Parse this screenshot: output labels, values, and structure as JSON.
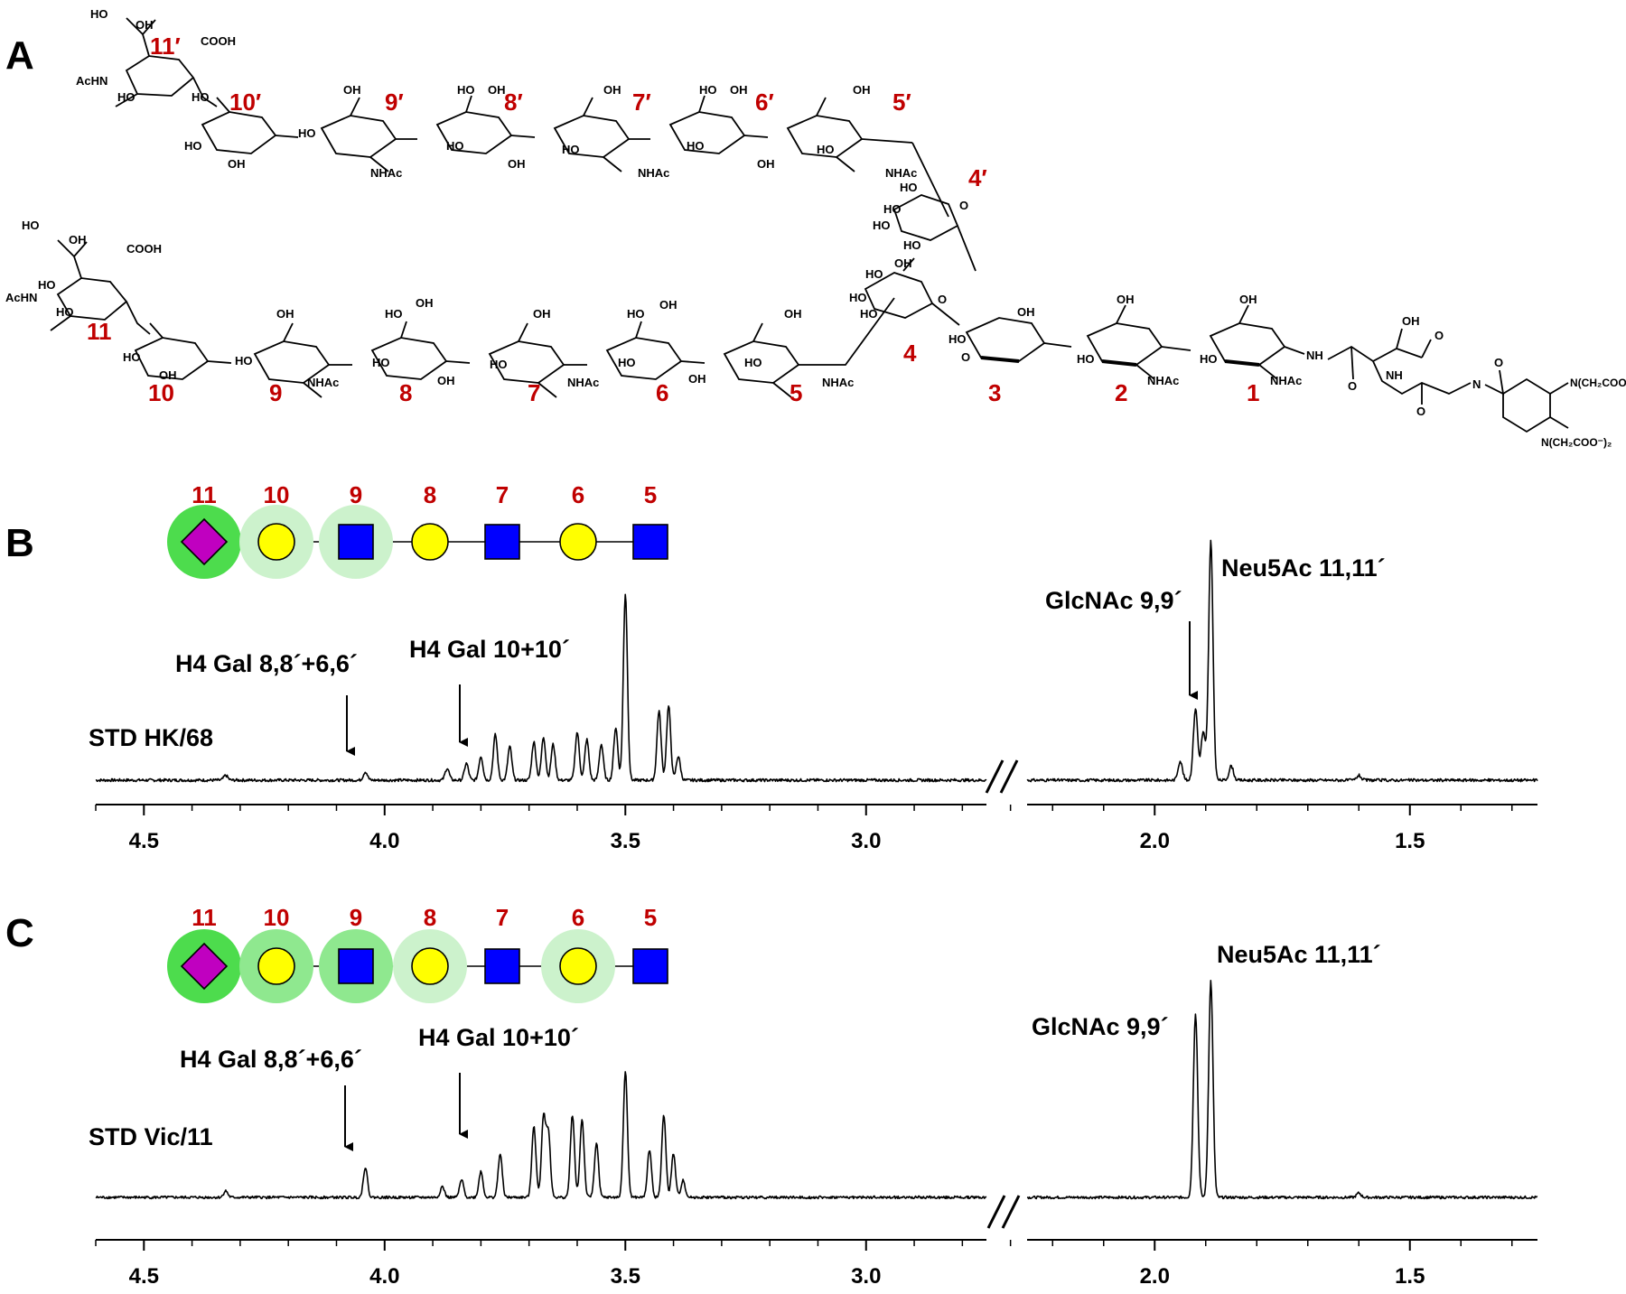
{
  "panel_labels": {
    "a": "A",
    "b": "B",
    "c": "C"
  },
  "structure": {
    "residue_labels": {
      "r1": "1",
      "r2": "2",
      "r3": "3",
      "r4": "4",
      "r5": "5",
      "r6": "6",
      "r7": "7",
      "r8": "8",
      "r9": "9",
      "r10": "10",
      "r11": "11",
      "r4p": "4′",
      "r5p": "5′",
      "r6p": "6′",
      "r7p": "7′",
      "r8p": "8′",
      "r9p": "9′",
      "r10p": "10′",
      "r11p": "11′"
    },
    "group_labels": {
      "oh": "OH",
      "ho": "HO",
      "cooh": "COOH",
      "acnh": "AcHN",
      "nhac": "NHAc",
      "nh": "NH",
      "n": "N",
      "o": "O",
      "chelator_top": "N(CH₂COO⁻)₂",
      "chelator_bottom": "N(CH₂COO⁻)₂"
    }
  },
  "symbols": {
    "labels": [
      "11",
      "10",
      "9",
      "8",
      "7",
      "6",
      "5"
    ],
    "types": [
      "sialic-acid-diamond",
      "galactose-circle",
      "glcnac-square",
      "galactose-circle",
      "glcnac-square",
      "galactose-circle",
      "glcnac-square"
    ],
    "colors": {
      "diamond": "#c000c0",
      "circle": "#ffff00",
      "square": "#0000ff",
      "halo_strong": "#4ddc4d",
      "halo_medium": "#8fe88f",
      "halo_light": "#ccf2cc"
    },
    "halos_B": [
      "strong",
      "light",
      "light",
      "none",
      "none",
      "none",
      "none"
    ],
    "halos_C": [
      "strong",
      "medium",
      "medium",
      "light",
      "none",
      "light",
      "none"
    ]
  },
  "chart_data": [
    {
      "panel": "B",
      "type": "line",
      "spectrum_label": "STD HK/68",
      "annotations": {
        "gal8_6": "H4 Gal 8,8´+6,6´",
        "gal10": "H4 Gal 10+10´",
        "glcnac": "GlcNAc 9,9´",
        "neu5ac": "Neu5Ac 11,11´"
      },
      "x_unit": "ppm",
      "x_reversed": true,
      "xlim_left": [
        4.6,
        2.75
      ],
      "xlim_right": [
        2.25,
        1.25
      ],
      "ticks": [
        "4.5",
        "4.0",
        "3.5",
        "3.0",
        "2.0",
        "1.5"
      ],
      "tick_values": [
        4.5,
        4.0,
        3.5,
        3.0,
        2.0,
        1.5
      ],
      "peaks": [
        {
          "x": 4.33,
          "y": 0.02
        },
        {
          "x": 4.04,
          "y": 0.035
        },
        {
          "x": 3.87,
          "y": 0.05
        },
        {
          "x": 3.83,
          "y": 0.07
        },
        {
          "x": 3.8,
          "y": 0.1
        },
        {
          "x": 3.77,
          "y": 0.19
        },
        {
          "x": 3.74,
          "y": 0.14
        },
        {
          "x": 3.69,
          "y": 0.16
        },
        {
          "x": 3.67,
          "y": 0.18
        },
        {
          "x": 3.65,
          "y": 0.15
        },
        {
          "x": 3.6,
          "y": 0.2
        },
        {
          "x": 3.58,
          "y": 0.17
        },
        {
          "x": 3.55,
          "y": 0.15
        },
        {
          "x": 3.52,
          "y": 0.22
        },
        {
          "x": 3.5,
          "y": 0.78
        },
        {
          "x": 3.43,
          "y": 0.29
        },
        {
          "x": 3.41,
          "y": 0.31
        },
        {
          "x": 3.39,
          "y": 0.1
        },
        {
          "x": 1.95,
          "y": 0.08
        },
        {
          "x": 1.92,
          "y": 0.3
        },
        {
          "x": 1.905,
          "y": 0.2
        },
        {
          "x": 1.89,
          "y": 1.0
        },
        {
          "x": 1.85,
          "y": 0.06
        },
        {
          "x": 1.6,
          "y": 0.02
        }
      ]
    },
    {
      "panel": "C",
      "type": "line",
      "spectrum_label": "STD Vic/11",
      "annotations": {
        "gal8_6": "H4 Gal 8,8´+6,6´",
        "gal10": "H4 Gal 10+10´",
        "glcnac": "GlcNAc 9,9´",
        "neu5ac": "Neu5Ac 11,11´"
      },
      "x_unit": "ppm",
      "x_reversed": true,
      "xlim_left": [
        4.6,
        2.75
      ],
      "xlim_right": [
        2.25,
        1.25
      ],
      "ticks": [
        "4.5",
        "4.0",
        "3.5",
        "3.0",
        "2.0",
        "1.5"
      ],
      "tick_values": [
        4.5,
        4.0,
        3.5,
        3.0,
        2.0,
        1.5
      ],
      "peaks": [
        {
          "x": 4.33,
          "y": 0.03
        },
        {
          "x": 4.04,
          "y": 0.14
        },
        {
          "x": 3.88,
          "y": 0.05
        },
        {
          "x": 3.84,
          "y": 0.08
        },
        {
          "x": 3.8,
          "y": 0.12
        },
        {
          "x": 3.76,
          "y": 0.2
        },
        {
          "x": 3.69,
          "y": 0.33
        },
        {
          "x": 3.67,
          "y": 0.37
        },
        {
          "x": 3.66,
          "y": 0.3
        },
        {
          "x": 3.61,
          "y": 0.38
        },
        {
          "x": 3.59,
          "y": 0.36
        },
        {
          "x": 3.56,
          "y": 0.25
        },
        {
          "x": 3.5,
          "y": 0.58
        },
        {
          "x": 3.45,
          "y": 0.22
        },
        {
          "x": 3.42,
          "y": 0.38
        },
        {
          "x": 3.4,
          "y": 0.2
        },
        {
          "x": 3.38,
          "y": 0.08
        },
        {
          "x": 1.92,
          "y": 0.85
        },
        {
          "x": 1.89,
          "y": 1.0
        },
        {
          "x": 1.6,
          "y": 0.02
        }
      ]
    }
  ]
}
